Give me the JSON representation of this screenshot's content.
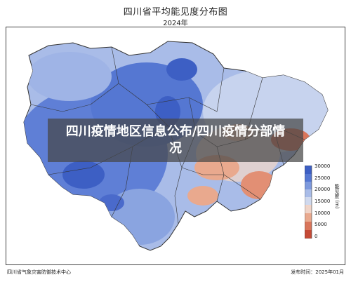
{
  "title": "四川省平均能见度分布图",
  "subtitle": "2024年",
  "banner": "四川疫情地区信息公布/四川疫情分部情况",
  "colorbar": {
    "title": "能见度 (m)",
    "ticks": [
      "30000",
      "25000",
      "20000",
      "15000",
      "10000",
      "5000",
      "0"
    ],
    "colors": [
      "#3d5fc4",
      "#5577d2",
      "#7d99dd",
      "#a9bce8",
      "#d0d9ee",
      "#f0d4c8",
      "#e9a98e",
      "#d9755a",
      "#c54a36"
    ]
  },
  "footer": {
    "left": "四川省气象灾害防御技术中心",
    "right": "发布时间：2025年01月"
  }
}
